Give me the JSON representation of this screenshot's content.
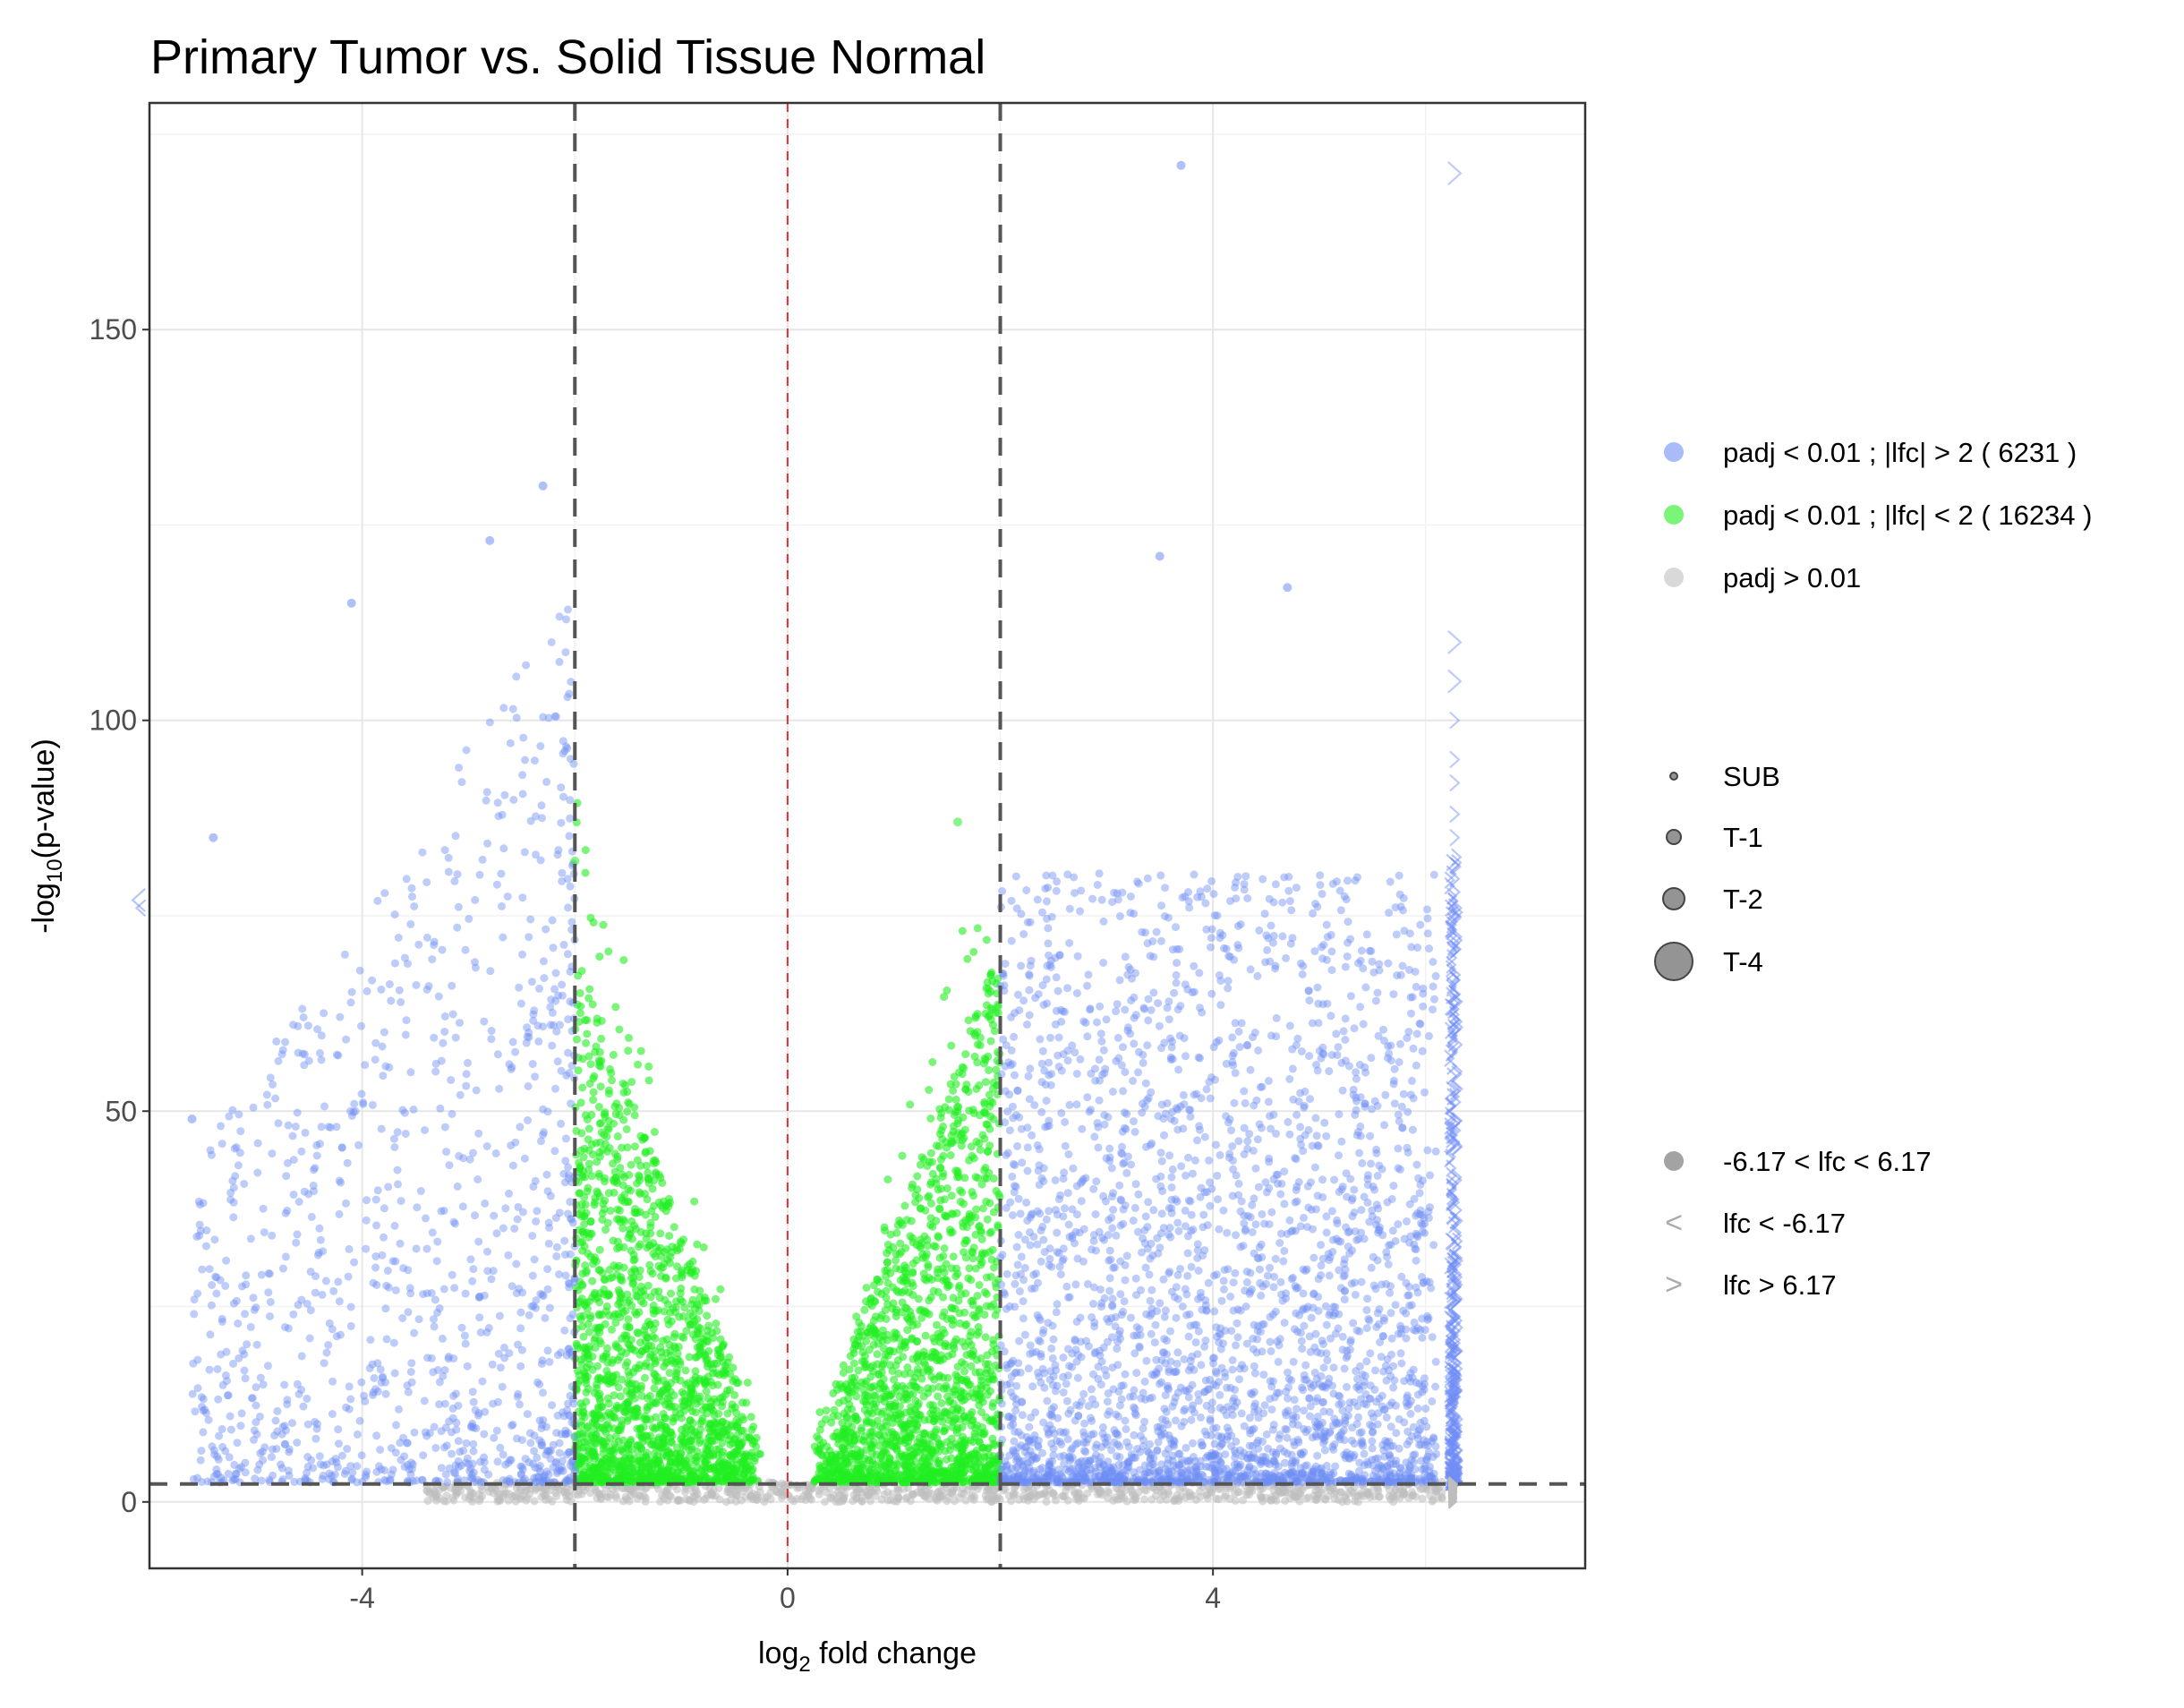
{
  "chart_data": {
    "type": "scatter",
    "title": "Primary Tumor vs. Solid Tissue Normal",
    "xlabel_main": "log",
    "xlabel_sub": "2",
    "xlabel_rest": " fold change",
    "ylabel_main": "-log",
    "ylabel_sub": "10",
    "ylabel_rest": "(p-value)",
    "xlim": [
      -6.0,
      7.5
    ],
    "ylim": [
      -8.5,
      179
    ],
    "x_ticks": [
      -4,
      0,
      4
    ],
    "x_tick_labels": [
      "-4",
      "0",
      "4"
    ],
    "y_ticks": [
      0,
      50,
      100,
      150
    ],
    "y_tick_labels": [
      "0",
      "50",
      "100",
      "150"
    ],
    "grid": true,
    "legend_position": "right",
    "thresholds": {
      "lfc_lines": [
        -2,
        2
      ],
      "center_line": 0,
      "pvalue_line": 2.3,
      "lfc_cap": 6.17
    },
    "colors": {
      "significant_high_lfc": "#6F8EF5",
      "significant_low_lfc": "#22EE22",
      "not_significant": "#BDBDBD",
      "threshold_line": "#555555",
      "center_line": "#E03030"
    },
    "series": [
      {
        "name": "padj < 0.01 ; |lfc| > 2  ( 6231 )",
        "key": "blue",
        "count": 6231
      },
      {
        "name": "padj < 0.01 ; |lfc| < 2  ( 16234 )",
        "key": "green",
        "count": 16234
      },
      {
        "name": "padj > 0.01",
        "key": "grey"
      }
    ],
    "size_legend": [
      "SUB",
      "T-1",
      "T-2",
      "T-4"
    ],
    "shape_legend": [
      {
        "symbol": "",
        "label": "-6.17 < lfc < 6.17"
      },
      {
        "symbol": "<",
        "label": "lfc <  -6.17"
      },
      {
        "symbol": ">",
        "label": "lfc >  6.17"
      }
    ],
    "notable_points": [
      {
        "x": 3.7,
        "y": 171,
        "series": "blue"
      },
      {
        "x": -2.3,
        "y": 130,
        "series": "blue"
      },
      {
        "x": -2.8,
        "y": 123,
        "series": "blue"
      },
      {
        "x": 3.5,
        "y": 121,
        "series": "blue"
      },
      {
        "x": 4.7,
        "y": 117,
        "series": "blue"
      },
      {
        "x": -4.1,
        "y": 115,
        "series": "blue"
      },
      {
        "x": -5.4,
        "y": 85,
        "series": "blue"
      },
      {
        "x": -5.6,
        "y": 49,
        "series": "blue"
      },
      {
        "x": -2.0,
        "y": 82,
        "series": "green"
      },
      {
        "x": 1.6,
        "y": 87,
        "series": "green"
      }
    ]
  }
}
